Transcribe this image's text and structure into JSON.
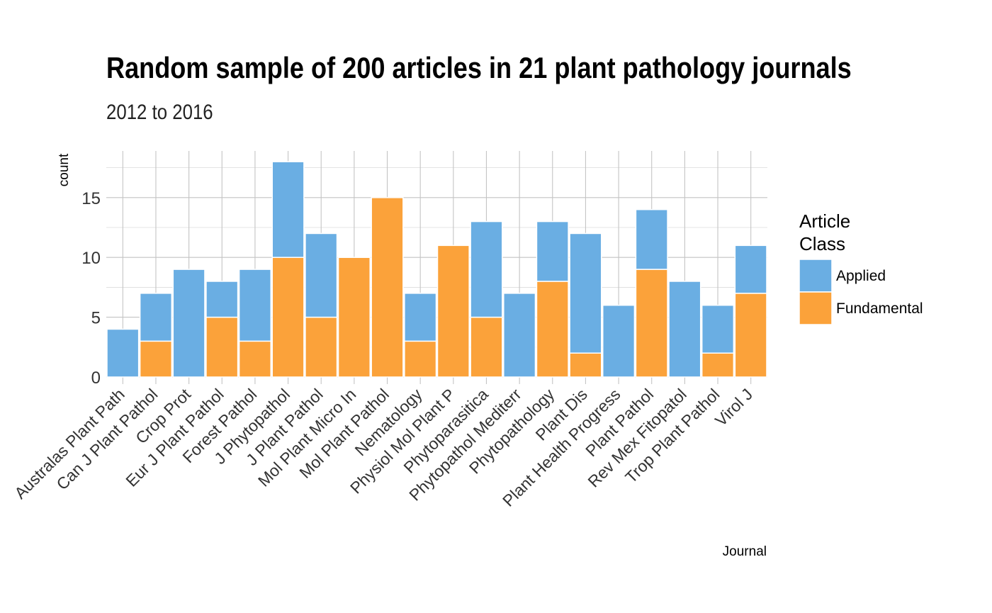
{
  "chart_data": {
    "type": "bar",
    "stacked": true,
    "title": "Random sample of 200 articles in 21 plant pathology journals",
    "subtitle": "2012 to 2016",
    "xlabel": "Journal",
    "ylabel": "count",
    "ylim": [
      0,
      18.9
    ],
    "yticks": [
      0,
      5,
      10,
      15
    ],
    "grid": true,
    "legend": {
      "title_lines": [
        "Article",
        "Class"
      ],
      "position": "right"
    },
    "categories": [
      "Australas Plant Path",
      "Can J Plant Pathol",
      "Crop Prot",
      "Eur J Plant Pathol",
      "Forest Pathol",
      "J Phytopathol",
      "J Plant Pathol",
      "Mol Plant Micro In",
      "Mol Plant Pathol",
      "Nematology",
      "Physiol Mol Plant P",
      "Phytoparasitica",
      "Phytopathol Mediterr",
      "Phytopathology",
      "Plant Dis",
      "Plant Health Progress",
      "Plant Pathol",
      "Rev Mex Fitopatol",
      "Trop Plant Pathol",
      "Virol J"
    ],
    "series": [
      {
        "name": "Fundamental",
        "color": "#FBA23A",
        "values": [
          0,
          3,
          0,
          5,
          3,
          10,
          5,
          10,
          15,
          3,
          11,
          5,
          0,
          8,
          2,
          0,
          9,
          0,
          2,
          7
        ]
      },
      {
        "name": "Applied",
        "color": "#6AAEE3",
        "values": [
          4,
          4,
          9,
          3,
          6,
          8,
          7,
          0,
          0,
          4,
          0,
          8,
          7,
          5,
          10,
          6,
          5,
          8,
          4,
          4
        ]
      }
    ],
    "legend_order": [
      "Applied",
      "Fundamental"
    ]
  }
}
